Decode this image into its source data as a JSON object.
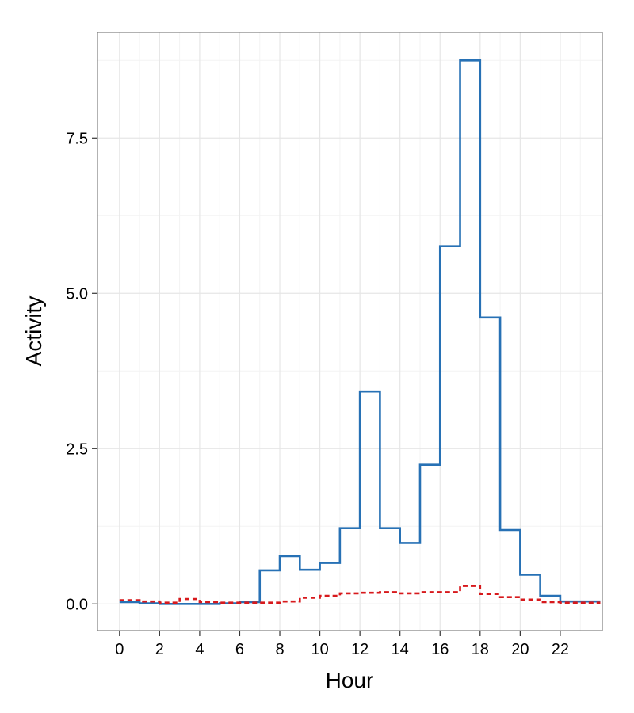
{
  "chart_data": {
    "type": "line",
    "step": true,
    "xlabel": "Hour",
    "ylabel": "Activity",
    "xlim": [
      -1.1,
      24.1
    ],
    "ylim": [
      -0.43,
      9.2
    ],
    "x_ticks": [
      0,
      2,
      4,
      6,
      8,
      10,
      12,
      14,
      16,
      18,
      20,
      22
    ],
    "y_ticks": [
      0.0,
      2.5,
      5.0,
      7.5
    ],
    "y_tick_labels": [
      "0.0",
      "2.5",
      "5.0",
      "7.5"
    ],
    "grid": true,
    "background": "#ffffff",
    "x": [
      0,
      1,
      2,
      3,
      4,
      5,
      6,
      7,
      8,
      9,
      10,
      11,
      12,
      13,
      14,
      15,
      16,
      17,
      18,
      19,
      20,
      21,
      22,
      23
    ],
    "series": [
      {
        "color": "#2771b5",
        "dash": "solid",
        "values": [
          0.03,
          0.01,
          0.0,
          0.0,
          0.0,
          0.01,
          0.03,
          0.54,
          0.77,
          0.55,
          0.66,
          1.22,
          3.42,
          1.22,
          0.98,
          2.24,
          5.76,
          8.75,
          4.61,
          1.19,
          0.47,
          0.13,
          0.04,
          0.04
        ]
      },
      {
        "color": "#d7191c",
        "dash": "dashed",
        "values": [
          0.06,
          0.04,
          0.02,
          0.08,
          0.03,
          0.02,
          0.02,
          0.02,
          0.04,
          0.1,
          0.13,
          0.17,
          0.18,
          0.19,
          0.17,
          0.19,
          0.19,
          0.29,
          0.16,
          0.11,
          0.07,
          0.03,
          0.02,
          0.02
        ]
      }
    ]
  }
}
